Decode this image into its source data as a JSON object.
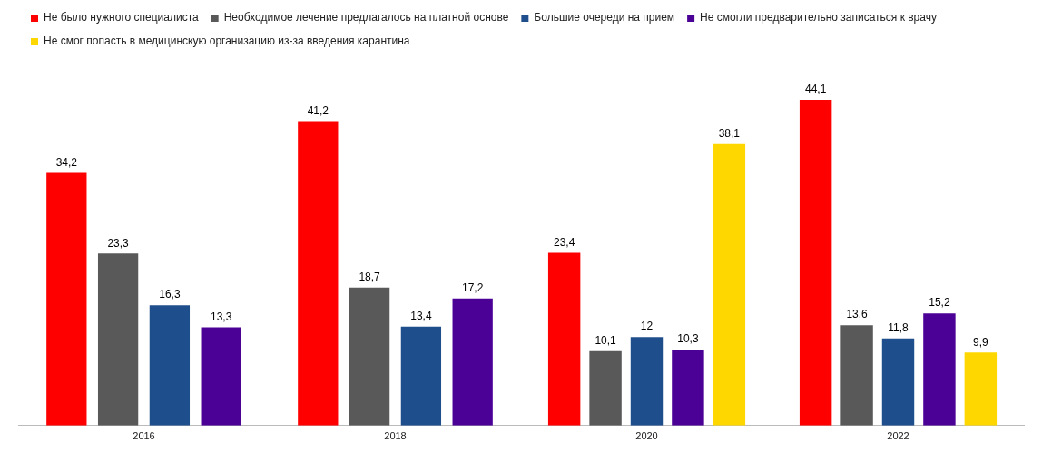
{
  "chart_data": {
    "type": "bar",
    "categories": [
      "2016",
      "2018",
      "2020",
      "2022"
    ],
    "series": [
      {
        "name": "Не было нужного специалиста",
        "color": "#ff0000",
        "values": [
          34.2,
          41.2,
          23.4,
          44.1
        ],
        "value_labels": [
          "34,2",
          "41,2",
          "23,4",
          "44,1"
        ]
      },
      {
        "name": "Необходимое лечение предлагалось на платной основе",
        "color": "#595959",
        "values": [
          23.3,
          18.7,
          10.1,
          13.6
        ],
        "value_labels": [
          "23,3",
          "18,7",
          "10,1",
          "13,6"
        ]
      },
      {
        "name": "Большие очереди на прием",
        "color": "#1f4e8c",
        "values": [
          16.3,
          13.4,
          12,
          11.8
        ],
        "value_labels": [
          "16,3",
          "13,4",
          "12",
          "11,8"
        ]
      },
      {
        "name": "Не смогли предварительно записаться к врачу",
        "color": "#4b0096",
        "values": [
          13.3,
          17.2,
          10.3,
          15.2
        ],
        "value_labels": [
          "13,3",
          "17,2",
          "10,3",
          "15,2"
        ]
      },
      {
        "name": "Не смог попасть в медицинскую организацию из-за введения карантина",
        "color": "#ffd700",
        "values": [
          null,
          null,
          38.1,
          9.9
        ],
        "value_labels": [
          null,
          null,
          "38,1",
          "9,9"
        ]
      }
    ],
    "legend": "top left",
    "grid": false,
    "tick_labels": "x"
  }
}
